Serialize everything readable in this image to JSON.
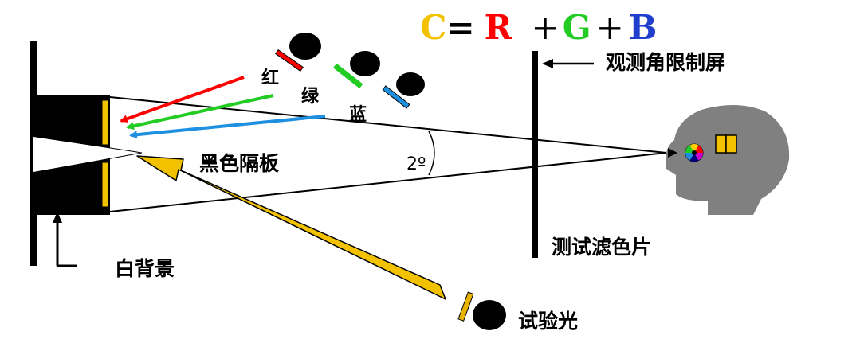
{
  "formula": {
    "c": "C",
    "eq": "=",
    "r": "R",
    "plus1": "+",
    "g": "G",
    "plus2": "+",
    "b": "B"
  },
  "labels": {
    "red": "红",
    "green": "绿",
    "blue": "蓝",
    "angle_screen": "观测角限制屏",
    "partition": "黑色隔板",
    "angle": "2º",
    "white_background": "白背景",
    "test_filter": "测试滤色片",
    "test_light": "试验光"
  },
  "colors": {
    "red": "#ff0000",
    "green": "#22cc22",
    "blue": "#1f8fe0",
    "yellow": "#f2c200",
    "gold": "#e8b400",
    "head": "#808080",
    "black": "#000000"
  },
  "icons": {
    "eye": "color-wheel-eye-icon",
    "lamp": "lamp-icon",
    "filter": "filter-icon"
  }
}
